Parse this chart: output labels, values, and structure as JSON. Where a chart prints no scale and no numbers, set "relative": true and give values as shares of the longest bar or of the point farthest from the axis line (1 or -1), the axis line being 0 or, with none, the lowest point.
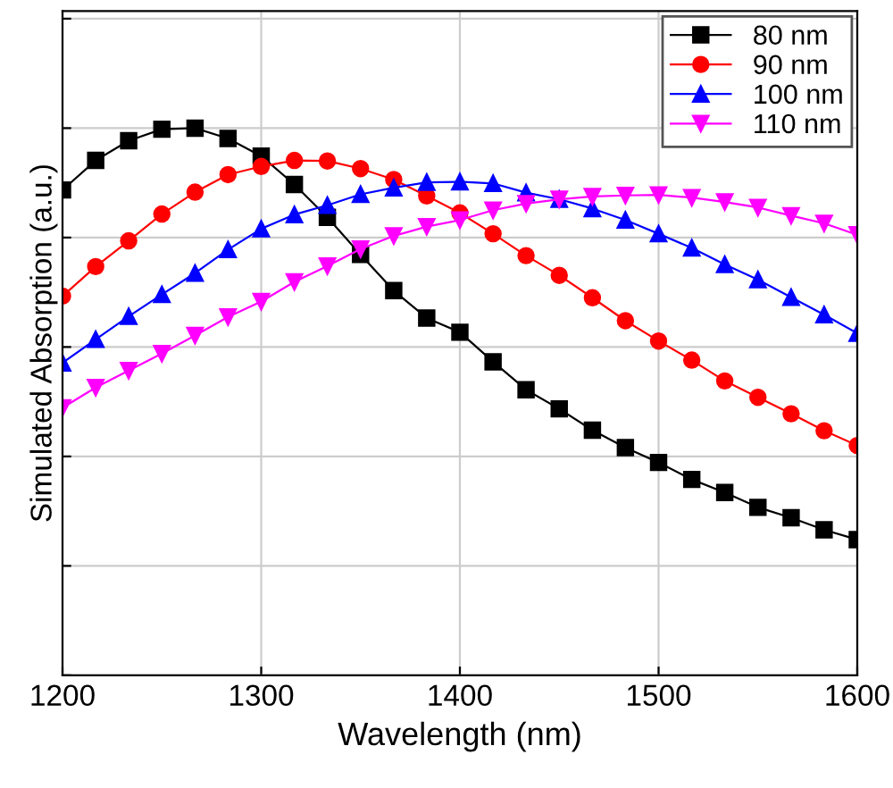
{
  "chart_data": {
    "type": "line",
    "relative": true,
    "xlabel": "Wavelength (nm)",
    "ylabel": "Simulated Absorption (a.u.)",
    "x": [
      1200,
      1216.7,
      1233.3,
      1250,
      1266.7,
      1283.3,
      1300,
      1316.7,
      1333.3,
      1350,
      1366.7,
      1383.3,
      1400,
      1416.7,
      1433.3,
      1450,
      1466.7,
      1483.3,
      1500,
      1516.7,
      1533.3,
      1550,
      1566.7,
      1583.3,
      1600
    ],
    "xlim": [
      1200,
      1600
    ],
    "xticks": [
      1200,
      1300,
      1400,
      1500,
      1600
    ],
    "grid": true,
    "legend": "top right",
    "tick_labels": "x",
    "series": [
      {
        "name": "80 nm",
        "color": "#000000",
        "marker": "square",
        "values": [
          0.887,
          0.941,
          0.977,
          0.998,
          1.0,
          0.981,
          0.949,
          0.897,
          0.837,
          0.769,
          0.703,
          0.653,
          0.627,
          0.573,
          0.522,
          0.487,
          0.448,
          0.416,
          0.389,
          0.358,
          0.334,
          0.307,
          0.288,
          0.266,
          0.248
        ]
      },
      {
        "name": "90 nm",
        "color": "#ff0000",
        "marker": "circle",
        "values": [
          0.693,
          0.747,
          0.794,
          0.843,
          0.883,
          0.915,
          0.93,
          0.941,
          0.94,
          0.926,
          0.906,
          0.876,
          0.845,
          0.807,
          0.767,
          0.731,
          0.69,
          0.648,
          0.611,
          0.576,
          0.538,
          0.508,
          0.478,
          0.447,
          0.42
        ]
      },
      {
        "name": "100 nm",
        "color": "#0000ff",
        "marker": "triangle",
        "values": [
          0.571,
          0.614,
          0.656,
          0.696,
          0.735,
          0.778,
          0.816,
          0.842,
          0.859,
          0.879,
          0.891,
          0.901,
          0.902,
          0.899,
          0.882,
          0.87,
          0.853,
          0.832,
          0.807,
          0.781,
          0.751,
          0.723,
          0.691,
          0.659,
          0.625
        ]
      },
      {
        "name": "110 nm",
        "color": "#ff00ff",
        "marker": "triangle_down",
        "values": [
          0.489,
          0.526,
          0.557,
          0.588,
          0.621,
          0.655,
          0.683,
          0.719,
          0.748,
          0.779,
          0.803,
          0.82,
          0.832,
          0.85,
          0.862,
          0.87,
          0.875,
          0.877,
          0.878,
          0.873,
          0.865,
          0.855,
          0.84,
          0.826,
          0.805
        ]
      }
    ]
  }
}
